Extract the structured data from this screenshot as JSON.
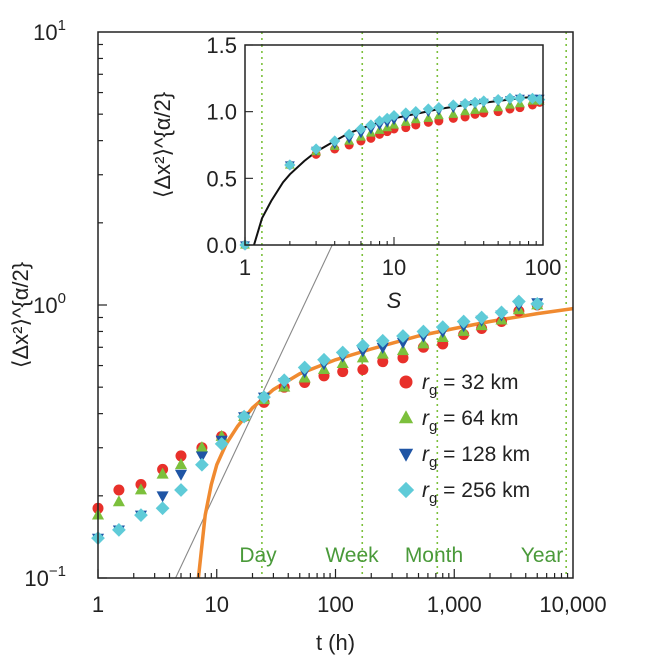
{
  "chart_data": [
    {
      "type": "scatter",
      "panel": "main",
      "xlabel": "t (h)",
      "ylabel": "⟨Δx²⟩^{α/2}",
      "xscale": "log",
      "yscale": "log",
      "xlim": [
        1,
        10000
      ],
      "ylim": [
        0.1,
        10
      ],
      "x_ticks": [
        {
          "value": 1,
          "label": "1"
        },
        {
          "value": 10,
          "label": "10"
        },
        {
          "value": 100,
          "label": "100"
        },
        {
          "value": 1000,
          "label": "1,000"
        },
        {
          "value": 10000,
          "label": "10,000"
        }
      ],
      "y_ticks": [
        {
          "value": 0.1,
          "base": "10",
          "exp": "−1"
        },
        {
          "value": 1,
          "base": "10",
          "exp": "0"
        },
        {
          "value": 10,
          "base": "10",
          "exp": "1"
        }
      ],
      "reference_lines": [
        {
          "x": 24,
          "label": "Day"
        },
        {
          "x": 168,
          "label": "Week"
        },
        {
          "x": 720,
          "label": "Month"
        },
        {
          "x": 8760,
          "label": "Year"
        }
      ],
      "legend": {
        "position": "bottom-right",
        "entries": [
          {
            "label": "r",
            "sub": "g",
            "text": " = 32 km",
            "color": "#e8302a",
            "marker": "circle"
          },
          {
            "label": "r",
            "sub": "g",
            "text": " = 64 km",
            "color": "#7cc03c",
            "marker": "triangle-up"
          },
          {
            "label": "r",
            "sub": "g",
            "text": " = 128 km",
            "color": "#1f55a5",
            "marker": "triangle-down"
          },
          {
            "label": "r",
            "sub": "g",
            "text": " = 256 km",
            "color": "#5fcbd8",
            "marker": "diamond"
          }
        ]
      },
      "series": [
        {
          "name": "rg = 32 km",
          "color": "#e8302a",
          "marker": "circle",
          "x": [
            1,
            1.5,
            2.3,
            3.5,
            5,
            7.5,
            11,
            17,
            25,
            37,
            55,
            80,
            115,
            170,
            250,
            370,
            550,
            800,
            1200,
            1700,
            2500,
            3500,
            5000
          ],
          "y": [
            0.18,
            0.21,
            0.22,
            0.25,
            0.28,
            0.3,
            0.33,
            0.39,
            0.44,
            0.5,
            0.52,
            0.55,
            0.57,
            0.58,
            0.62,
            0.64,
            0.7,
            0.72,
            0.78,
            0.82,
            0.87,
            0.95,
            1.0
          ]
        },
        {
          "name": "rg = 64 km",
          "color": "#7cc03c",
          "marker": "triangle-up",
          "x": [
            1,
            1.5,
            2.3,
            3.5,
            5,
            7.5,
            11,
            17,
            25,
            37,
            55,
            80,
            115,
            170,
            250,
            370,
            550,
            800,
            1200,
            1700,
            2500,
            3500,
            5000
          ],
          "y": [
            0.17,
            0.19,
            0.21,
            0.24,
            0.26,
            0.3,
            0.33,
            0.39,
            0.45,
            0.5,
            0.54,
            0.58,
            0.61,
            0.64,
            0.66,
            0.68,
            0.72,
            0.76,
            0.8,
            0.84,
            0.88,
            0.96,
            1.0
          ]
        },
        {
          "name": "rg = 128 km",
          "color": "#1f55a5",
          "marker": "triangle-down",
          "x": [
            1,
            1.5,
            2.3,
            3.5,
            5,
            7.5,
            11,
            17,
            25,
            37,
            55,
            80,
            115,
            170,
            250,
            370,
            550,
            800,
            1200,
            1700,
            2500,
            3500,
            5000
          ],
          "y": [
            0.14,
            0.15,
            0.17,
            0.2,
            0.24,
            0.28,
            0.32,
            0.39,
            0.46,
            0.52,
            0.57,
            0.61,
            0.65,
            0.68,
            0.7,
            0.73,
            0.77,
            0.8,
            0.84,
            0.88,
            0.92,
            1.0,
            1.02
          ]
        },
        {
          "name": "rg = 256 km",
          "color": "#5fcbd8",
          "marker": "diamond",
          "x": [
            1,
            1.5,
            2.3,
            3.5,
            5,
            7.5,
            11,
            17,
            25,
            37,
            55,
            80,
            115,
            170,
            250,
            370,
            550,
            800,
            1200,
            1700,
            2500,
            3500,
            5000
          ],
          "y": [
            0.14,
            0.15,
            0.17,
            0.18,
            0.21,
            0.26,
            0.31,
            0.39,
            0.46,
            0.53,
            0.59,
            0.63,
            0.67,
            0.71,
            0.74,
            0.77,
            0.8,
            0.83,
            0.87,
            0.9,
            0.94,
            1.03,
            1.01
          ]
        }
      ],
      "fit_curve": {
        "color": "#f08a30",
        "x": [
          7,
          8,
          9,
          10,
          12,
          15,
          20,
          30,
          50,
          100,
          200,
          500,
          1000,
          2000,
          5000,
          10000
        ],
        "y": [
          0.1,
          0.17,
          0.22,
          0.26,
          0.31,
          0.36,
          0.42,
          0.49,
          0.56,
          0.63,
          0.69,
          0.77,
          0.82,
          0.87,
          0.93,
          0.97
        ]
      },
      "guide_line": {
        "color": "#888888",
        "x": [
          4.5,
          140
        ],
        "y": [
          0.1,
          2.4
        ]
      }
    },
    {
      "type": "scatter",
      "panel": "inset",
      "xlabel": "S",
      "ylabel": "⟨Δx²⟩^{α/2}",
      "xscale": "log",
      "yscale": "linear",
      "xlim": [
        1,
        100
      ],
      "ylim": [
        0,
        1.5
      ],
      "x_ticks": [
        {
          "value": 1,
          "label": "1"
        },
        {
          "value": 10,
          "label": "10"
        },
        {
          "value": 100,
          "label": "100"
        }
      ],
      "y_ticks": [
        {
          "value": 0,
          "label": "0.0"
        },
        {
          "value": 0.5,
          "label": "0.5"
        },
        {
          "value": 1.0,
          "label": "1.0"
        },
        {
          "value": 1.5,
          "label": "1.5"
        }
      ],
      "series": [
        {
          "name": "rg = 32 km",
          "color": "#e8302a",
          "marker": "circle",
          "x": [
            1,
            2,
            3,
            4,
            5,
            6,
            7,
            8,
            9,
            10,
            12,
            14,
            17,
            20,
            25,
            30,
            35,
            40,
            50,
            60,
            70,
            85,
            95
          ],
          "y": [
            0,
            0.6,
            0.68,
            0.72,
            0.75,
            0.78,
            0.8,
            0.83,
            0.85,
            0.87,
            0.88,
            0.9,
            0.92,
            0.93,
            0.95,
            0.96,
            0.98,
            0.99,
            1.0,
            1.02,
            1.03,
            1.05,
            1.07
          ]
        },
        {
          "name": "rg = 64 km",
          "color": "#7cc03c",
          "marker": "triangle-up",
          "x": [
            1,
            2,
            3,
            4,
            5,
            6,
            7,
            8,
            9,
            10,
            12,
            14,
            17,
            20,
            25,
            30,
            35,
            40,
            50,
            60,
            70,
            85,
            95
          ],
          "y": [
            0,
            0.6,
            0.7,
            0.74,
            0.78,
            0.81,
            0.84,
            0.86,
            0.88,
            0.9,
            0.92,
            0.94,
            0.95,
            0.97,
            0.98,
            1.0,
            1.01,
            1.02,
            1.03,
            1.05,
            1.06,
            1.08,
            1.08
          ]
        },
        {
          "name": "rg = 128 km",
          "color": "#1f55a5",
          "marker": "triangle-down",
          "x": [
            1,
            2,
            3,
            4,
            5,
            6,
            7,
            8,
            9,
            10,
            12,
            14,
            17,
            20,
            25,
            30,
            35,
            40,
            50,
            60,
            70,
            85,
            95
          ],
          "y": [
            0,
            0.6,
            0.71,
            0.76,
            0.8,
            0.84,
            0.87,
            0.9,
            0.92,
            0.94,
            0.96,
            0.98,
            1.0,
            1.01,
            1.03,
            1.05,
            1.06,
            1.07,
            1.08,
            1.09,
            1.1,
            1.1,
            1.1
          ]
        },
        {
          "name": "rg = 256 km",
          "color": "#5fcbd8",
          "marker": "diamond",
          "x": [
            1,
            2,
            3,
            4,
            5,
            6,
            7,
            8,
            9,
            10,
            12,
            14,
            17,
            20,
            25,
            30,
            35,
            40,
            50,
            60,
            70,
            85,
            95
          ],
          "y": [
            0,
            0.6,
            0.72,
            0.78,
            0.83,
            0.87,
            0.9,
            0.93,
            0.95,
            0.97,
            0.99,
            1.0,
            1.02,
            1.03,
            1.05,
            1.06,
            1.07,
            1.08,
            1.09,
            1.1,
            1.1,
            1.1,
            1.09
          ]
        }
      ],
      "fit_curve": {
        "color": "#111111",
        "x": [
          1.15,
          1.3,
          1.5,
          1.8,
          2,
          2.5,
          3,
          4,
          5,
          7,
          10,
          15,
          20,
          30,
          50,
          70,
          100
        ],
        "y": [
          0,
          0.2,
          0.33,
          0.47,
          0.53,
          0.63,
          0.7,
          0.78,
          0.84,
          0.9,
          0.95,
          0.99,
          1.02,
          1.05,
          1.08,
          1.1,
          1.12
        ]
      }
    }
  ]
}
